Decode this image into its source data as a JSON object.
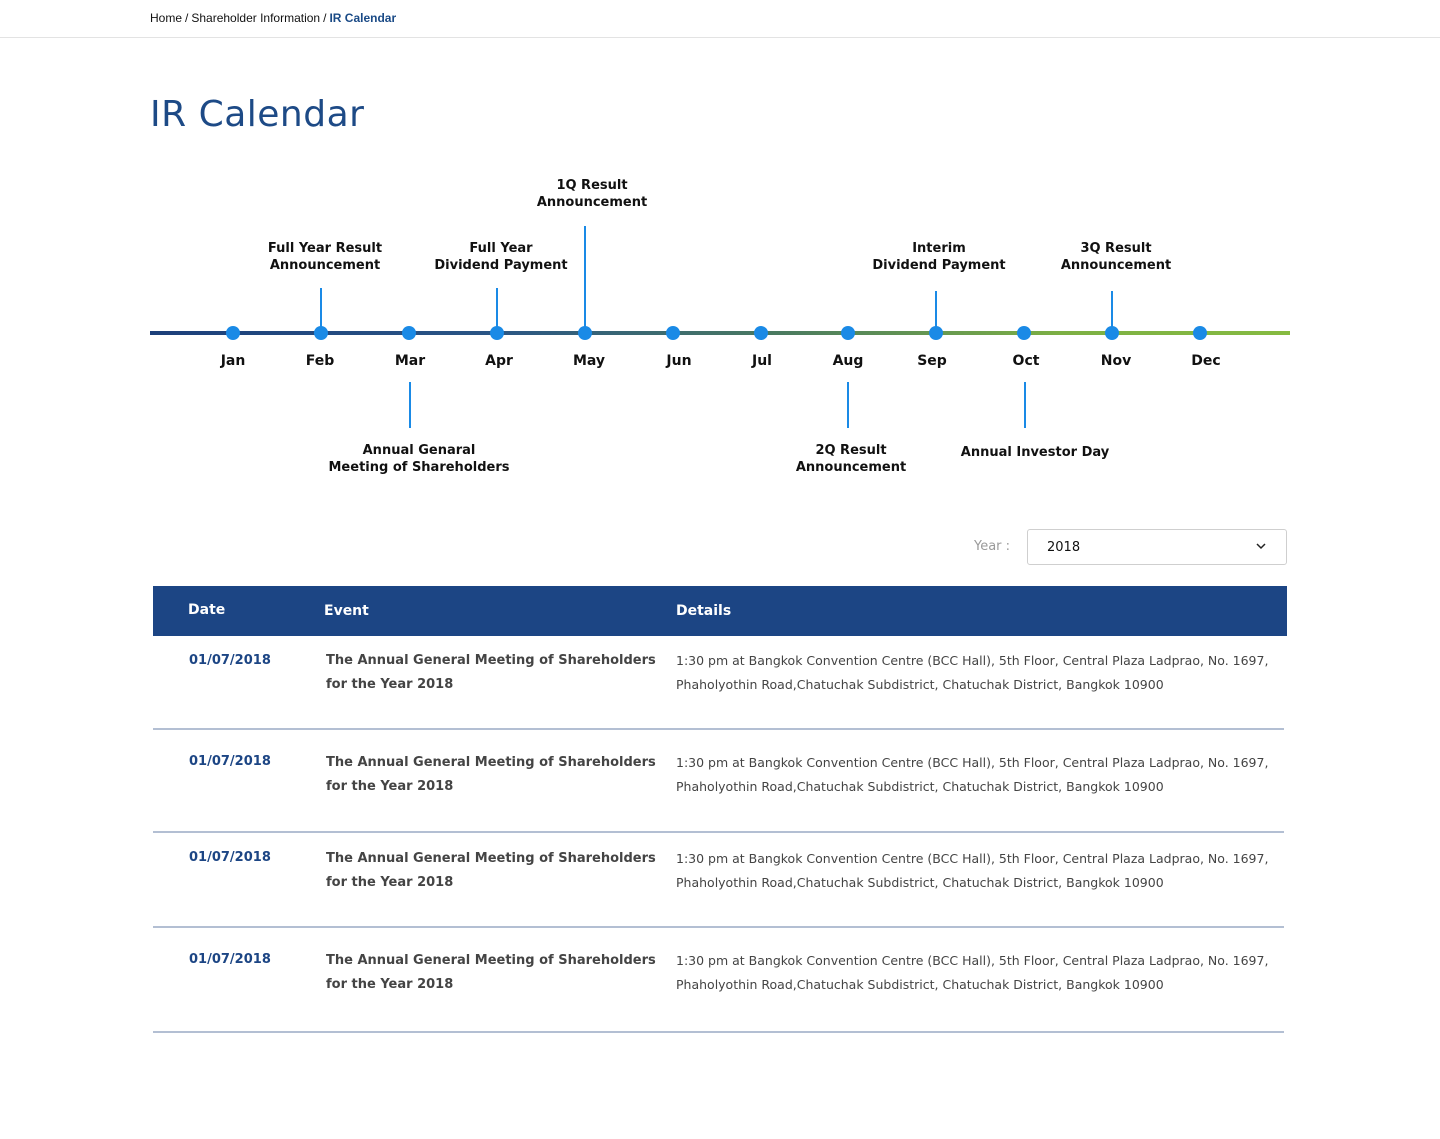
{
  "breadcrumb": {
    "items": [
      "Home",
      "Shareholder Information"
    ],
    "current": "IR Calendar",
    "separator": "/"
  },
  "page": {
    "title": "IR Calendar"
  },
  "timeline": {
    "months": [
      "Jan",
      "Feb",
      "Mar",
      "Apr",
      "May",
      "Jun",
      "Jul",
      "Aug",
      "Sep",
      "Oct",
      "Nov",
      "Dec"
    ],
    "events_above": [
      {
        "month": "Feb",
        "lines": [
          "Full Year Result",
          "Announcement"
        ]
      },
      {
        "month": "Apr",
        "lines": [
          "Full Year",
          "Dividend Payment"
        ]
      },
      {
        "month": "May",
        "lines": [
          "1Q Result",
          "Announcement"
        ]
      },
      {
        "month": "Sep",
        "lines": [
          "Interim",
          "Dividend Payment"
        ]
      },
      {
        "month": "Nov",
        "lines": [
          "3Q Result",
          "Announcement"
        ]
      }
    ],
    "events_below": [
      {
        "month": "Mar",
        "lines": [
          "Annual Genaral",
          "Meeting of Shareholders"
        ]
      },
      {
        "month": "Aug",
        "lines": [
          "2Q Result",
          "Announcement"
        ]
      },
      {
        "month": "Oct",
        "lines": [
          "Annual Investor Day"
        ]
      }
    ],
    "colors": {
      "line_start": "#1c3f7a",
      "line_end": "#86bb41",
      "dot": "#1a8ae6"
    }
  },
  "filter": {
    "year_label": "Year :",
    "year_value": "2018",
    "icon": "chevron-down-icon"
  },
  "table": {
    "headers": {
      "date": "Date",
      "event": "Event",
      "details": "Details"
    },
    "rows": [
      {
        "date": "01/07/2018",
        "event": [
          "The Annual General Meeting of Shareholders",
          "for the Year 2018"
        ],
        "details": [
          "1:30 pm at Bangkok Convention Centre (BCC Hall), 5th Floor, Central Plaza Ladprao, No. 1697,",
          "Phaholyothin Road,Chatuchak Subdistrict, Chatuchak District, Bangkok 10900"
        ]
      },
      {
        "date": "01/07/2018",
        "event": [
          "The Annual General Meeting of Shareholders",
          "for the Year 2018"
        ],
        "details": [
          "1:30 pm at Bangkok Convention Centre (BCC Hall), 5th Floor, Central Plaza Ladprao, No. 1697,",
          "Phaholyothin Road,Chatuchak Subdistrict, Chatuchak District, Bangkok 10900"
        ]
      },
      {
        "date": "01/07/2018",
        "event": [
          "The Annual General Meeting of Shareholders",
          "for the Year 2018"
        ],
        "details": [
          "1:30 pm at Bangkok Convention Centre (BCC Hall), 5th Floor, Central Plaza Ladprao, No. 1697,",
          "Phaholyothin Road,Chatuchak Subdistrict, Chatuchak District, Bangkok 10900"
        ]
      },
      {
        "date": "01/07/2018",
        "event": [
          "The Annual General Meeting of Shareholders",
          "for the Year 2018"
        ],
        "details": [
          "1:30 pm at Bangkok Convention Centre (BCC Hall), 5th Floor, Central Plaza Ladprao, No. 1697,",
          "Phaholyothin Road,Chatuchak Subdistrict, Chatuchak District, Bangkok 10900"
        ]
      }
    ]
  }
}
